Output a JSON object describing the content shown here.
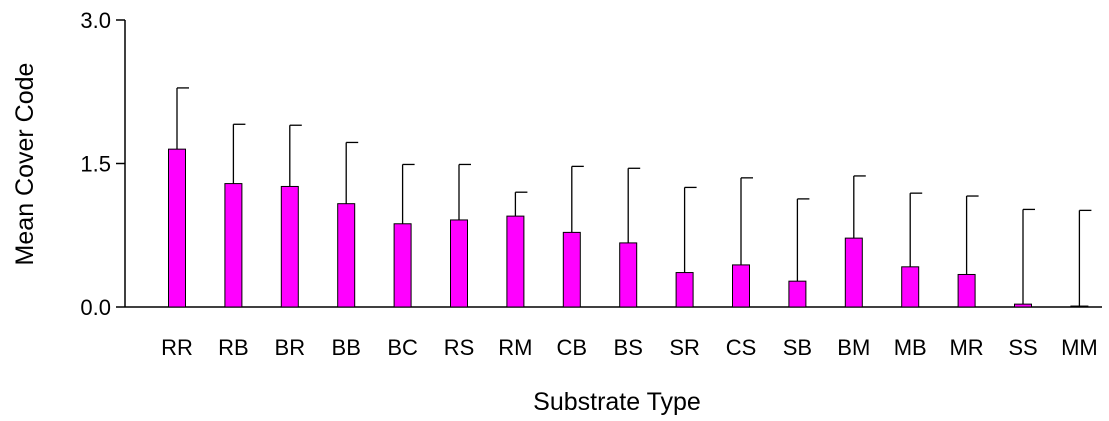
{
  "chart_data": {
    "type": "bar",
    "title": "",
    "xlabel": "Substrate Type",
    "ylabel": "Mean Cover Code",
    "ylim": [
      0,
      3.0
    ],
    "yticks": [
      "0.0",
      "1.5",
      "3.0"
    ],
    "ytick_values": [
      0,
      1.5,
      3.0
    ],
    "categories": [
      "RR",
      "RB",
      "BR",
      "BB",
      "BC",
      "RS",
      "RM",
      "CB",
      "BS",
      "SR",
      "CS",
      "SB",
      "BM",
      "MB",
      "MR",
      "SS",
      "MM"
    ],
    "values": [
      1.65,
      1.29,
      1.26,
      1.08,
      0.87,
      0.91,
      0.95,
      0.78,
      0.67,
      0.36,
      0.44,
      0.27,
      0.72,
      0.42,
      0.34,
      0.03,
      0.01
    ],
    "error_upper": [
      2.29,
      1.91,
      1.9,
      1.72,
      1.49,
      1.49,
      1.2,
      1.47,
      1.45,
      1.25,
      1.35,
      1.13,
      1.37,
      1.19,
      1.16,
      1.02,
      1.01
    ],
    "bar_color": "#ff00ff",
    "grid": false,
    "legend": "none"
  },
  "corner_label": ")"
}
